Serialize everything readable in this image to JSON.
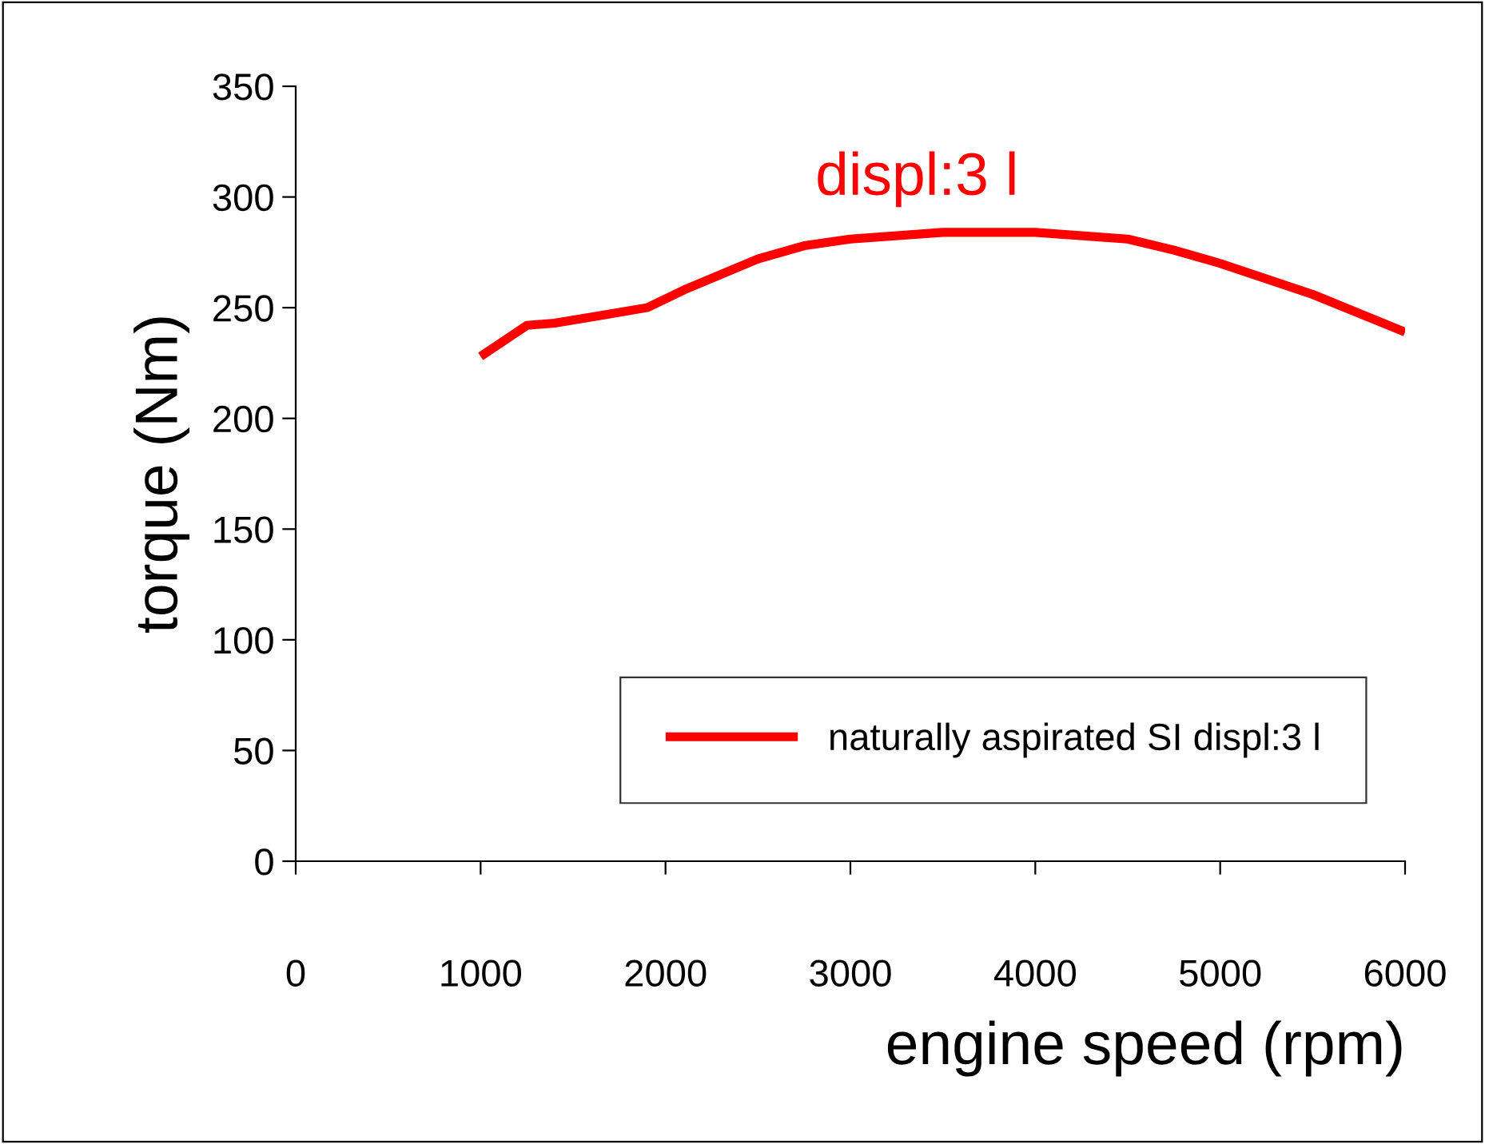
{
  "chart_data": {
    "type": "line",
    "xlabel": "engine speed (rpm)",
    "ylabel": "torque (Nm)",
    "annotations": [
      "displ:3 l"
    ],
    "series": [
      {
        "name": "naturally aspirated SI displ:3 l",
        "color": "#ff0000",
        "x": [
          1000,
          1250,
          1400,
          1900,
          2100,
          2500,
          2750,
          3000,
          3500,
          4000,
          4500,
          4750,
          5000,
          5500,
          6000
        ],
        "values": [
          228,
          242,
          243,
          250,
          258,
          272,
          278,
          281,
          284,
          284,
          281,
          276,
          270,
          256,
          239
        ]
      }
    ],
    "xlim": [
      0,
      6000
    ],
    "ylim": [
      0,
      350
    ],
    "xticks": [
      0,
      1000,
      2000,
      3000,
      4000,
      5000,
      6000
    ],
    "yticks": [
      0,
      50,
      100,
      150,
      200,
      250,
      300,
      350
    ],
    "grid": false,
    "legend": "bottom right",
    "marker": "none",
    "line_style": "solid"
  }
}
